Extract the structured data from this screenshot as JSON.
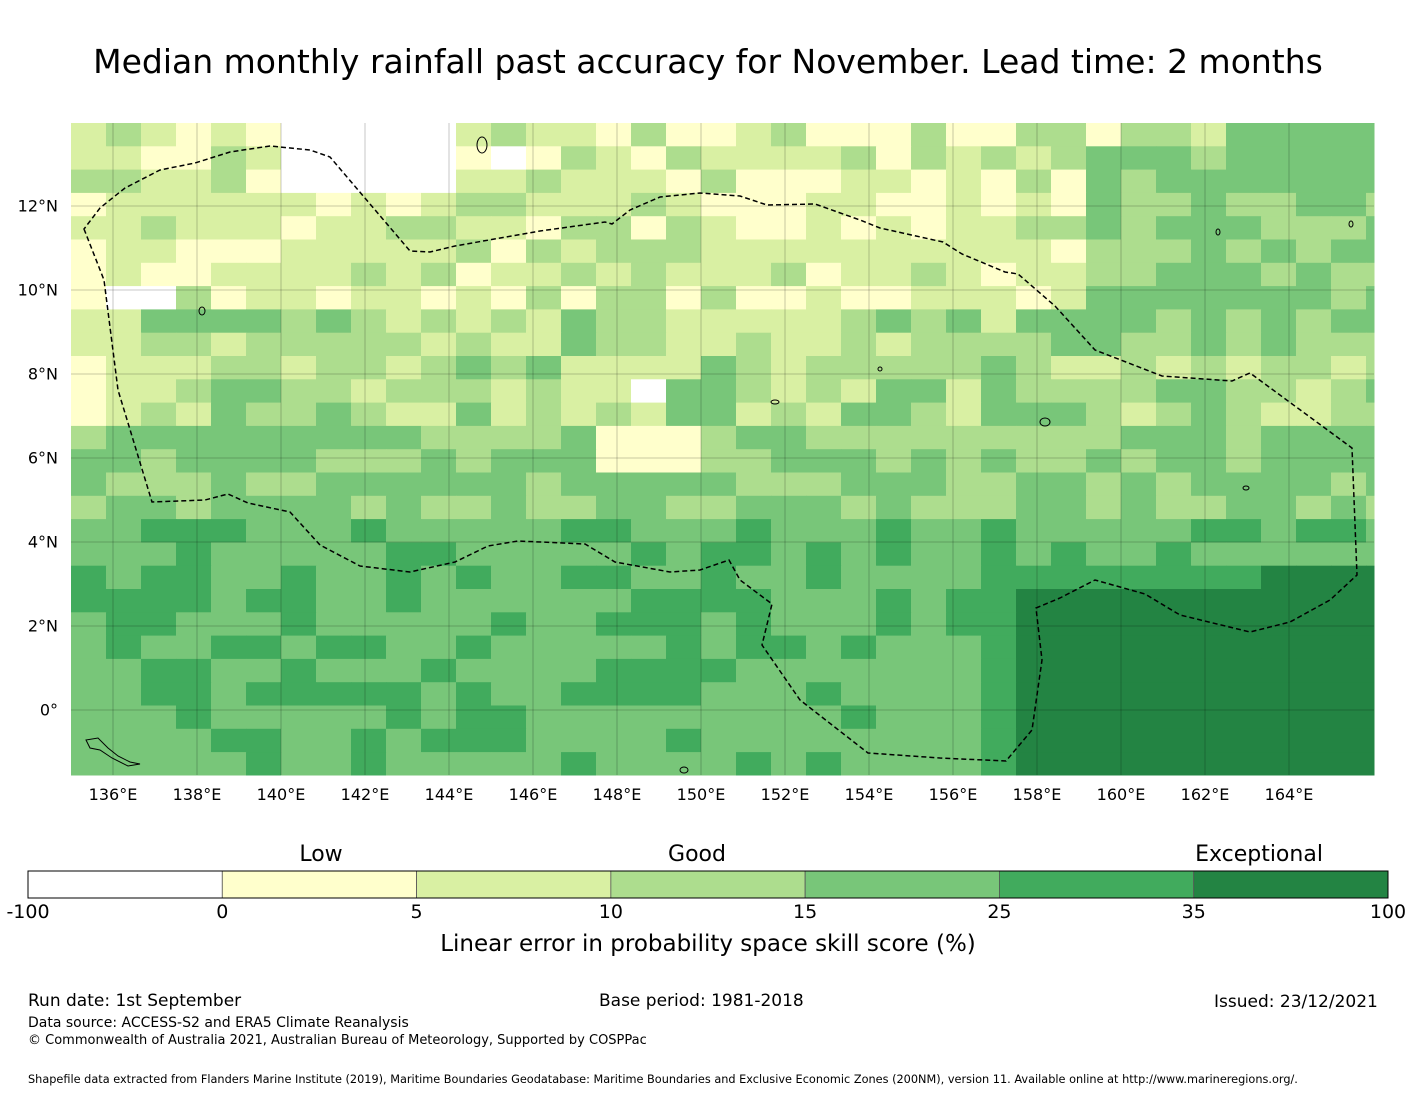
{
  "title": "Median monthly rainfall past accuracy for November. Lead time: 2 months",
  "map": {
    "lon_ticks": [
      "136°E",
      "138°E",
      "140°E",
      "142°E",
      "144°E",
      "146°E",
      "148°E",
      "150°E",
      "152°E",
      "154°E",
      "156°E",
      "158°E",
      "160°E",
      "162°E",
      "164°E"
    ],
    "lat_ticks": [
      "12°N",
      "10°N",
      "8°N",
      "6°N",
      "4°N",
      "2°N",
      "0°"
    ],
    "lon_range": [
      135,
      166
    ],
    "lat_range": [
      -1.5,
      14
    ],
    "grid_cell_deg": 0.83,
    "boundary_style": "dashed black"
  },
  "legend": {
    "category_labels": [
      "Low",
      "Good",
      "Exceptional"
    ],
    "bin_edges": [
      "-100",
      "0",
      "5",
      "10",
      "15",
      "25",
      "35",
      "100"
    ],
    "colors": [
      "#ffffff",
      "#ffffcc",
      "#d9f0a3",
      "#addd8e",
      "#78c679",
      "#41ab5d",
      "#238443"
    ],
    "title": "Linear error in probability space skill score (%)"
  },
  "footer": {
    "run_date": "Run date: 1st September",
    "base_period": "Base period: 1981-2018",
    "issued": "Issued: 23/12/2021",
    "data_source": "Data source: ACCESS-S2 and ERA5 Climate Reanalysis",
    "copyright": "© Commonwealth of Australia 2021, Australian Bureau of Meteorology, Supported by COSPPac",
    "shapefile": "Shapefile data extracted from Flanders Marine Institute (2019), Maritime Boundaries Geodatabase: Maritime Boundaries and Exclusive Economic Zones (200NM), version 11. Available online at http://www.marineregions.org/."
  }
}
